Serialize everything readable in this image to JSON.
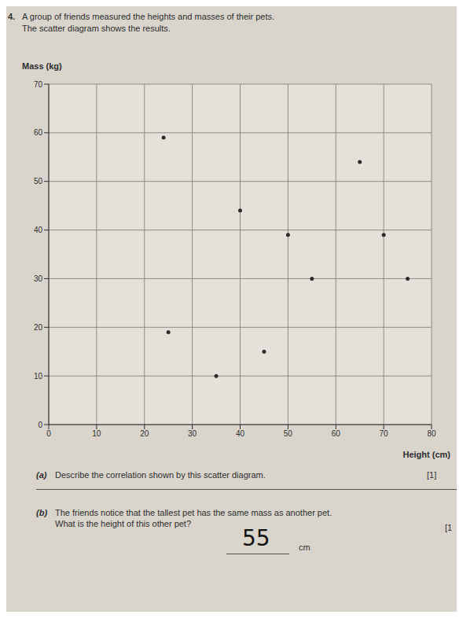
{
  "chart_data": {
    "type": "scatter",
    "x_label": "Height (cm)",
    "y_label": "Mass (kg)",
    "x": [
      24,
      65,
      40,
      50,
      70,
      55,
      75,
      25,
      45,
      35
    ],
    "values": [
      59,
      54,
      44,
      39,
      39,
      30,
      30,
      19,
      15,
      10
    ],
    "color": "#2b2b2b",
    "marker": "circle",
    "xlim": [
      0,
      80
    ],
    "ylim": [
      0,
      70
    ],
    "xticks": [
      0,
      10,
      20,
      30,
      40,
      50,
      60,
      70,
      80
    ],
    "yticks": [
      0,
      10,
      20,
      30,
      40,
      50,
      60,
      70
    ],
    "grid": true
  },
  "document": {
    "question": {
      "number": "4.",
      "lines": [
        "A group of friends measured the heights and masses of their pets.",
        "The scatter diagram shows the results."
      ]
    },
    "parts": [
      {
        "label": "(a)",
        "lines": [
          "Describe the correlation shown by this scatter diagram."
        ],
        "marks": "[1]"
      },
      {
        "label": "(b)",
        "lines": [
          "The friends notice that the tallest pet has the same mass as another pet.",
          "What is the height of this other pet?"
        ],
        "marks": "[1",
        "answer": "55",
        "unit": "cm"
      }
    ]
  }
}
